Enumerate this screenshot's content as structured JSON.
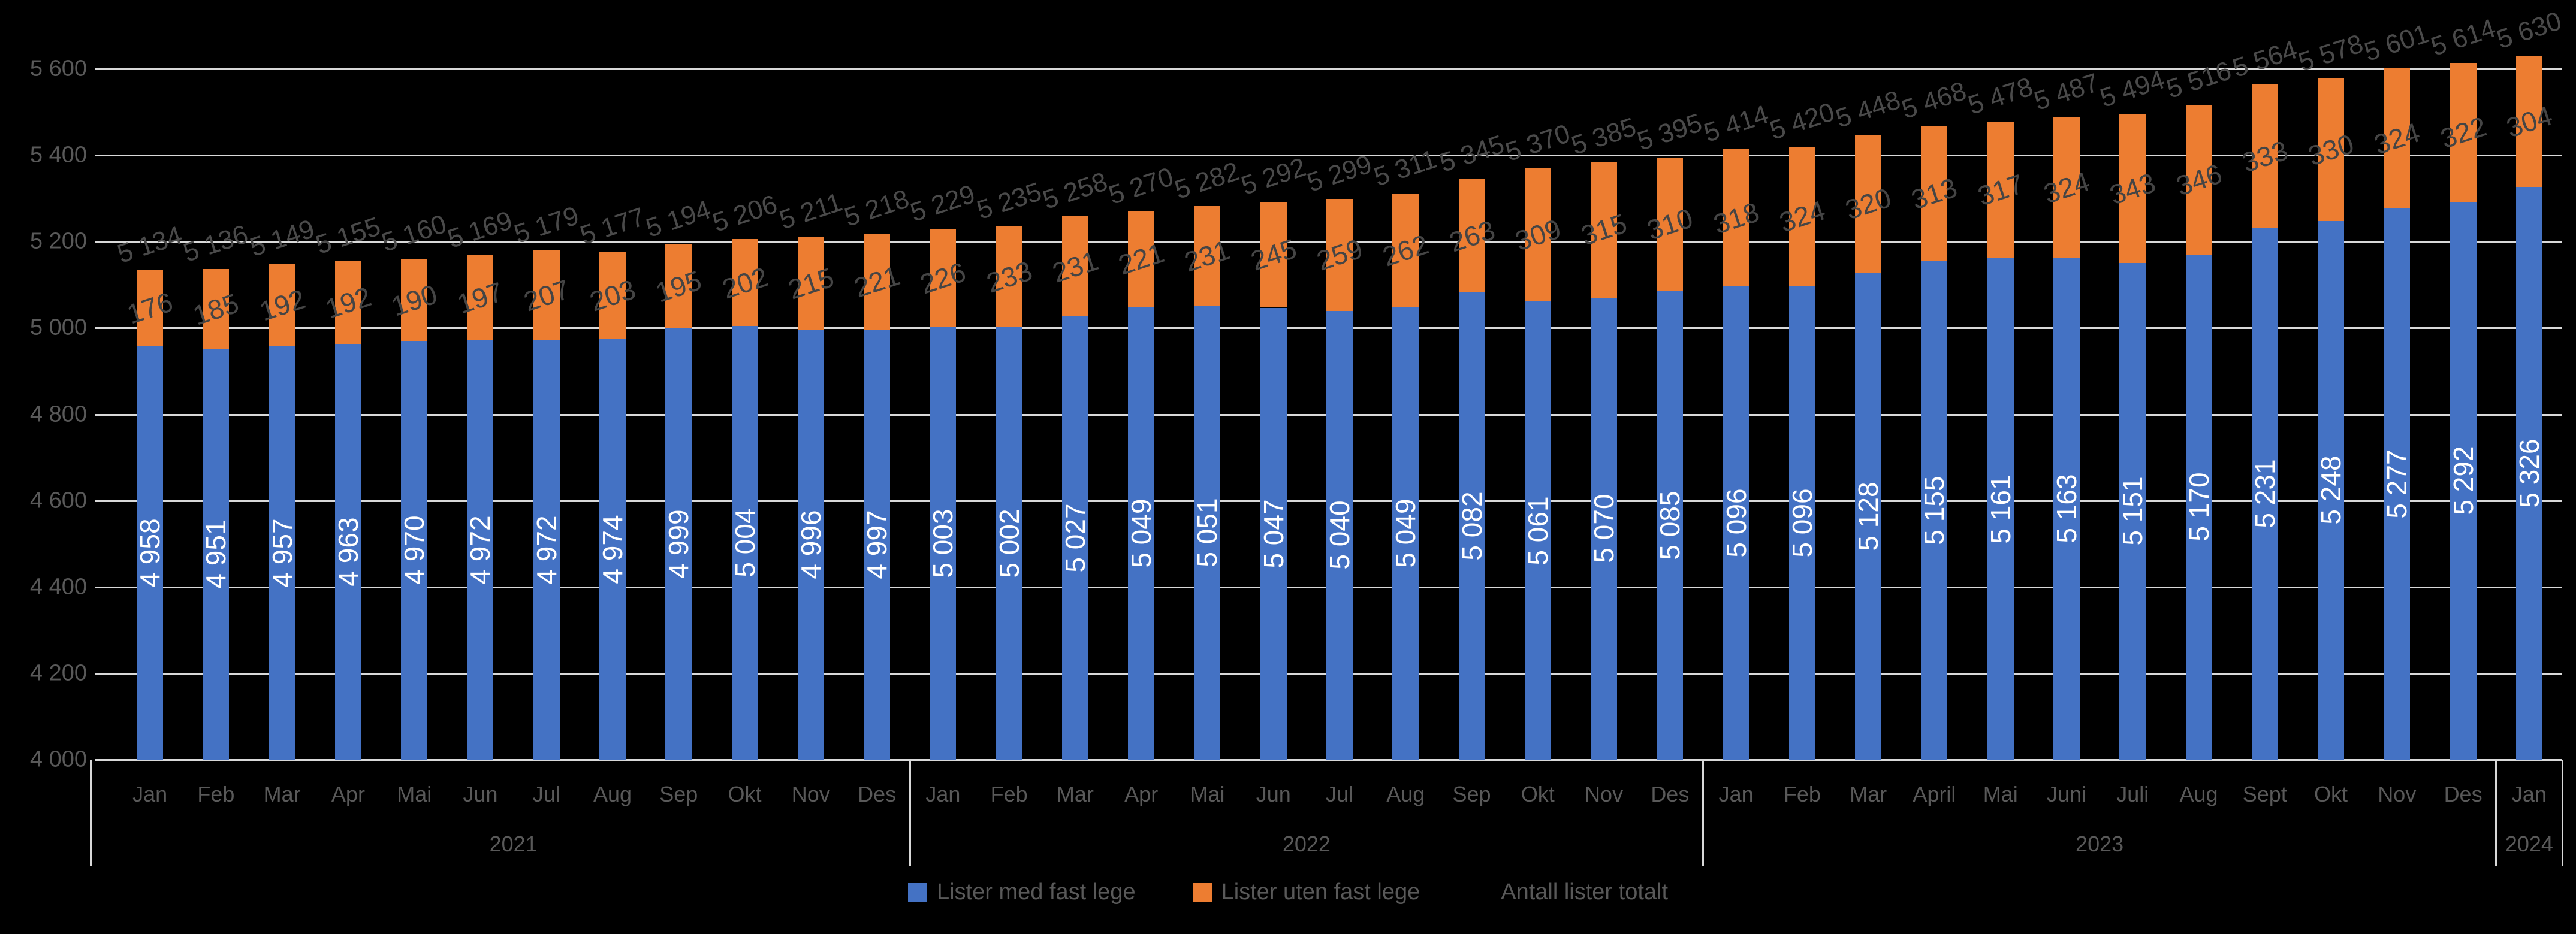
{
  "chart_data": {
    "type": "bar",
    "subtype": "stacked-column",
    "title": "",
    "xlabel": "",
    "ylabel": "",
    "background_color": "#000000",
    "gridline_color": "#D9D9D9",
    "grid": true,
    "legend_position": "bottom",
    "ylim": [
      4000,
      5600
    ],
    "y_axis": {
      "min": 4000,
      "max": 5600,
      "step": 200,
      "tick_labels": [
        "4 000",
        "4 200",
        "4 400",
        "4 600",
        "4 800",
        "5 000",
        "5 200",
        "5 400",
        "5 600"
      ]
    },
    "x_axis": {
      "year_groups": [
        {
          "year": "2021",
          "months": [
            "Jan",
            "Feb",
            "Mar",
            "Apr",
            "Mai",
            "Jun",
            "Jul",
            "Aug",
            "Sep",
            "Okt",
            "Nov",
            "Des"
          ]
        },
        {
          "year": "2022",
          "months": [
            "Jan",
            "Feb",
            "Mar",
            "Apr",
            "Mai",
            "Jun",
            "Jul",
            "Aug",
            "Sep",
            "Okt",
            "Nov",
            "Des"
          ]
        },
        {
          "year": "2023",
          "months": [
            "Jan",
            "Feb",
            "Mar",
            "April",
            "Mai",
            "Juni",
            "Juli",
            "Aug",
            "Sept",
            "Okt",
            "Nov",
            "Des"
          ]
        },
        {
          "year": "2024",
          "months": [
            "Jan"
          ]
        }
      ]
    },
    "series": [
      {
        "name": "Lister med fast lege",
        "color": "#4472C4",
        "label_color": "#FFFFFF",
        "values": [
          4958,
          4951,
          4957,
          4963,
          4970,
          4972,
          4972,
          4974,
          4999,
          5004,
          4996,
          4997,
          5003,
          5002,
          5027,
          5049,
          5051,
          5047,
          5040,
          5049,
          5082,
          5061,
          5070,
          5085,
          5096,
          5096,
          5128,
          5155,
          5161,
          5163,
          5151,
          5170,
          5231,
          5248,
          5277,
          5292,
          5326
        ]
      },
      {
        "name": "Lister uten fast lege",
        "color": "#ED7D31",
        "label_color": "#454545",
        "values": [
          176,
          185,
          192,
          192,
          190,
          197,
          207,
          203,
          195,
          202,
          215,
          221,
          226,
          233,
          231,
          221,
          231,
          245,
          259,
          262,
          263,
          309,
          315,
          310,
          318,
          324,
          320,
          313,
          317,
          324,
          343,
          346,
          333,
          330,
          324,
          322,
          304
        ]
      }
    ],
    "totals": {
      "name": "Antall lister totalt",
      "label_color": "#4a4a4a",
      "values": [
        5134,
        5136,
        5149,
        5155,
        5160,
        5169,
        5179,
        5177,
        5194,
        5206,
        5211,
        5218,
        5229,
        5235,
        5258,
        5270,
        5282,
        5292,
        5299,
        5311,
        5345,
        5370,
        5385,
        5395,
        5414,
        5420,
        5448,
        5468,
        5478,
        5487,
        5494,
        5516,
        5564,
        5578,
        5601,
        5614,
        5630
      ]
    }
  },
  "legend": {
    "items": [
      {
        "label": "Lister med fast lege",
        "swatch": "#4472C4"
      },
      {
        "label": "Lister uten fast lege",
        "swatch": "#ED7D31"
      },
      {
        "label": "Antall lister totalt",
        "swatch": null
      }
    ]
  }
}
